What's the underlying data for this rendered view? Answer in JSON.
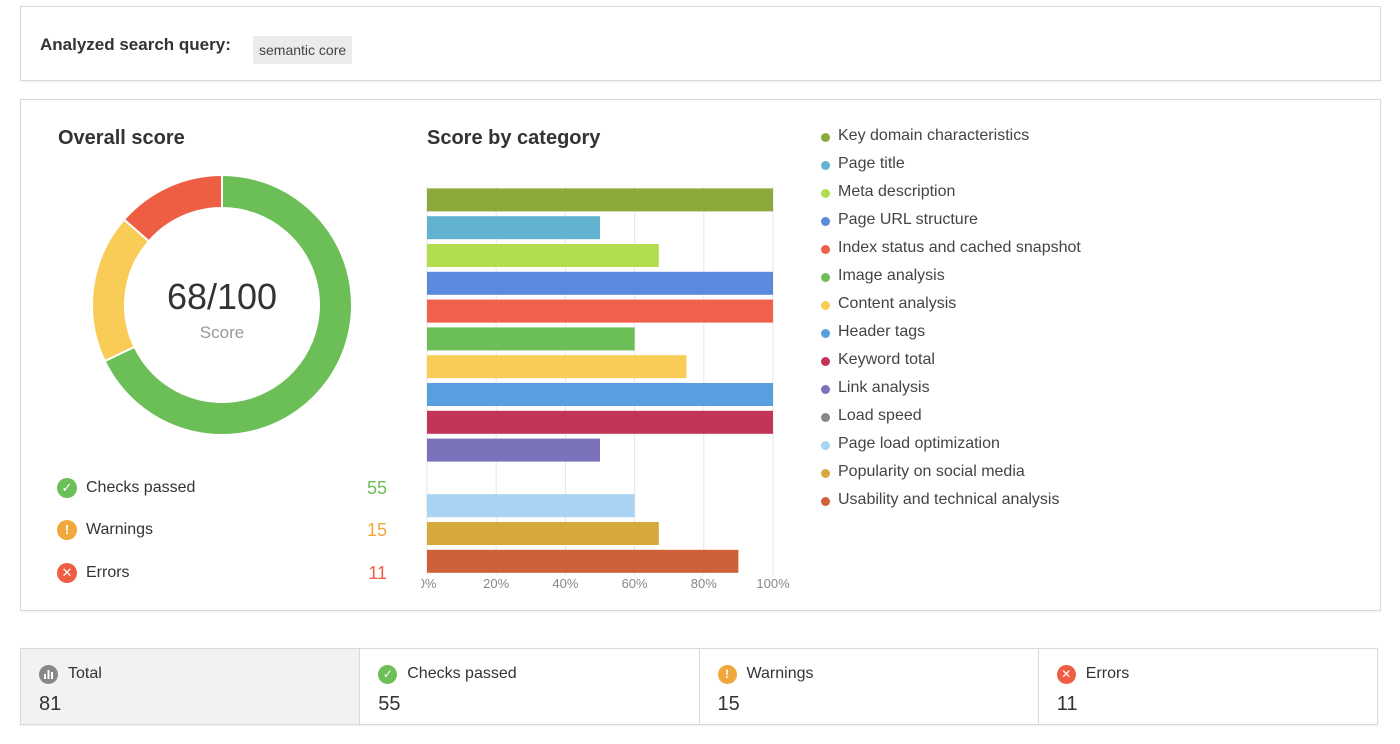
{
  "query": {
    "label": "Analyzed search query:",
    "value": "semantic core"
  },
  "overall": {
    "title": "Overall score",
    "score_text": "68/100",
    "score_caption": "Score",
    "segments": [
      {
        "name": "passed",
        "value": 55,
        "color": "#6cbe57"
      },
      {
        "name": "warnings",
        "value": 15,
        "color": "#f8cc56"
      },
      {
        "name": "errors",
        "value": 11,
        "color": "#ee5e43"
      }
    ],
    "stats": [
      {
        "label": "Checks passed",
        "value": "55",
        "color": "#6cbe57",
        "icon": "check-icon"
      },
      {
        "label": "Warnings",
        "value": "15",
        "color": "#f0a73b",
        "icon": "exclamation-icon"
      },
      {
        "label": "Errors",
        "value": "11",
        "color": "#ee5e43",
        "icon": "cross-icon"
      }
    ]
  },
  "chart_data": {
    "type": "bar",
    "orientation": "horizontal",
    "title": "Score by category",
    "categories": [
      "Key domain characteristics",
      "Page title",
      "Meta description",
      "Page URL structure",
      "Index status and cached snapshot",
      "Image analysis",
      "Content analysis",
      "Header tags",
      "Keyword total",
      "Link analysis",
      "Load speed",
      "Page load optimization",
      "Popularity on social media",
      "Usability and technical analysis"
    ],
    "values": [
      100,
      50,
      67,
      100,
      100,
      60,
      75,
      100,
      100,
      50,
      0,
      60,
      67,
      90
    ],
    "colors": [
      "#8aaa3b",
      "#62b3cf",
      "#b1dd4e",
      "#5c89dd",
      "#f0604a",
      "#6cbe57",
      "#f8cc56",
      "#589fe0",
      "#c33458",
      "#7a73bc",
      "#888888",
      "#a8d3f2",
      "#d6a93f",
      "#cf6139"
    ],
    "xlim": [
      0,
      100
    ],
    "xticks": [
      "0%",
      "20%",
      "40%",
      "60%",
      "80%",
      "100%"
    ],
    "grid": true,
    "legend": "right"
  },
  "summary": [
    {
      "label": "Total",
      "value": "81",
      "icon": "bar-chart-icon",
      "color": "#888888"
    },
    {
      "label": "Checks passed",
      "value": "55",
      "icon": "check-icon",
      "color": "#6cbe57"
    },
    {
      "label": "Warnings",
      "value": "15",
      "icon": "exclamation-icon",
      "color": "#f0a73b"
    },
    {
      "label": "Errors",
      "value": "11",
      "icon": "cross-icon",
      "color": "#ee5e43"
    }
  ]
}
